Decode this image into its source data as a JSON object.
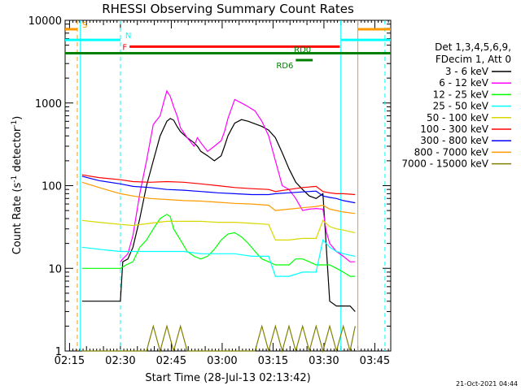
{
  "chart_data": {
    "type": "line",
    "title": "RHESSI Observing Summary Count Rates",
    "xlabel": "Start Time (28-Jul-13 02:13:42)",
    "ylabel": "Count Rate (s",
    "ylabel_sup1": "-1",
    "ylabel_mid": " detector",
    "ylabel_sup2": "-1",
    "ylabel_end": ")",
    "footer": "21-Oct-2021 04:44",
    "x_unit": "minutes since 02:13:42",
    "xlim": [
      0,
      96
    ],
    "ylim": [
      1,
      10000
    ],
    "yscale": "log",
    "x_tick_labels": [
      "02:15",
      "02:30",
      "02:45",
      "03:00",
      "03:15",
      "03:30",
      "03:45"
    ],
    "x_tick_values": [
      1.3,
      16.3,
      31.3,
      46.3,
      61.3,
      76.3,
      91.3
    ],
    "y_tick_labels": [
      "1",
      "10",
      "100",
      "1000",
      "10000"
    ],
    "y_tick_values": [
      1,
      10,
      100,
      1000,
      10000
    ],
    "legend_header": [
      "Det 1,3,4,5,6,9,",
      "FDecim 1, Att 0"
    ],
    "legend_position": "right",
    "series": [
      {
        "name": "3 - 6 keV",
        "color": "#000000",
        "x": [
          5,
          7,
          9,
          11,
          13,
          15,
          16.3,
          17,
          18.5,
          20,
          22,
          24,
          26,
          28,
          30,
          31,
          32,
          33,
          34,
          36,
          38,
          39,
          40,
          42,
          44,
          46,
          47,
          48,
          49,
          50,
          52,
          54,
          56,
          58,
          60,
          62,
          64,
          66,
          68,
          70,
          72,
          74,
          76,
          78,
          80,
          82,
          84,
          85.5
        ],
        "y": [
          4,
          4,
          4,
          4,
          4,
          4,
          4,
          12,
          13,
          18,
          40,
          100,
          200,
          400,
          600,
          650,
          620,
          520,
          450,
          380,
          330,
          300,
          260,
          230,
          200,
          230,
          300,
          400,
          480,
          570,
          630,
          600,
          560,
          520,
          470,
          380,
          250,
          160,
          110,
          90,
          75,
          70,
          80,
          4,
          3.5,
          3.5,
          3.5,
          3
        ]
      },
      {
        "name": "6 - 12 keV",
        "color": "#ff00ff",
        "x": [
          16.3,
          17,
          18.5,
          20,
          22,
          24,
          26,
          28,
          29,
          30,
          31,
          32,
          33,
          34,
          36,
          38,
          39,
          40,
          42,
          44,
          46,
          47,
          48,
          49,
          50,
          52,
          54,
          56,
          58,
          60,
          62,
          64,
          66,
          68,
          70,
          72,
          74,
          76,
          77,
          78,
          80,
          82,
          84,
          85.5
        ],
        "y": [
          12,
          13,
          15,
          25,
          80,
          200,
          550,
          700,
          1000,
          1400,
          1200,
          900,
          700,
          500,
          380,
          300,
          380,
          330,
          260,
          300,
          350,
          450,
          650,
          850,
          1100,
          1000,
          900,
          800,
          600,
          400,
          200,
          100,
          90,
          70,
          50,
          52,
          53,
          52,
          28,
          20,
          16,
          14,
          12,
          12
        ]
      },
      {
        "name": "12 - 25 keV",
        "color": "#00ff00",
        "x": [
          5,
          8,
          12,
          16.3,
          18,
          20,
          22,
          24,
          26,
          28,
          30,
          31,
          32,
          34,
          36,
          38,
          40,
          42,
          44,
          46,
          48,
          50,
          52,
          54,
          56,
          58,
          60,
          62,
          64,
          66,
          68,
          70,
          72,
          74,
          76,
          78,
          80,
          82,
          84,
          85.5
        ],
        "y": [
          10,
          10,
          10,
          10,
          11,
          12,
          18,
          22,
          30,
          40,
          45,
          42,
          30,
          22,
          16,
          14,
          13,
          14,
          17,
          22,
          26,
          27,
          24,
          20,
          16,
          13,
          12,
          11,
          11,
          11,
          13,
          13,
          12,
          11,
          11,
          11,
          10,
          9,
          8,
          8
        ]
      },
      {
        "name": "25 - 50 keV",
        "color": "#00ffff",
        "x": [
          5,
          10,
          16.3,
          20,
          25,
          30,
          35,
          40,
          45,
          50,
          55,
          60,
          62,
          66,
          70,
          74,
          76,
          78,
          80,
          82,
          85.5
        ],
        "y": [
          18,
          17,
          16,
          16,
          16,
          16,
          16,
          15,
          15,
          15,
          14,
          14,
          8,
          8,
          9,
          9,
          22,
          18,
          16,
          15,
          14
        ]
      },
      {
        "name": "50 - 100 keV",
        "color": "#d8d800",
        "x": [
          5,
          10,
          16.3,
          20,
          25,
          30,
          35,
          40,
          45,
          50,
          55,
          60,
          62,
          66,
          70,
          74,
          76,
          78,
          80,
          82,
          85.5
        ],
        "y": [
          38,
          36,
          34,
          33,
          35,
          37,
          37,
          37,
          36,
          36,
          35,
          34,
          22,
          22,
          23,
          23,
          38,
          32,
          30,
          29,
          27
        ]
      },
      {
        "name": "100 - 300 keV",
        "color": "#ff0000",
        "x": [
          5,
          10,
          16.3,
          20,
          25,
          30,
          35,
          40,
          45,
          50,
          55,
          60,
          62,
          66,
          70,
          74,
          76,
          78,
          80,
          82,
          85.5
        ],
        "y": [
          135,
          125,
          118,
          112,
          110,
          112,
          110,
          105,
          100,
          95,
          92,
          90,
          85,
          90,
          95,
          98,
          85,
          82,
          80,
          80,
          78
        ]
      },
      {
        "name": "300 - 800 keV",
        "color": "#0000ff",
        "x": [
          5,
          10,
          16.3,
          20,
          25,
          30,
          35,
          40,
          45,
          50,
          55,
          60,
          62,
          66,
          70,
          74,
          76,
          78,
          80,
          82,
          85.5
        ],
        "y": [
          130,
          115,
          105,
          98,
          95,
          90,
          88,
          85,
          82,
          80,
          78,
          78,
          80,
          82,
          84,
          86,
          75,
          72,
          70,
          66,
          62
        ]
      },
      {
        "name": "800 - 7000 keV",
        "color": "#ff9900",
        "x": [
          5,
          10,
          16.3,
          20,
          25,
          30,
          35,
          40,
          45,
          50,
          55,
          60,
          62,
          66,
          70,
          74,
          76,
          78,
          80,
          82,
          85.5
        ],
        "y": [
          110,
          95,
          80,
          75,
          70,
          68,
          66,
          65,
          63,
          61,
          60,
          58,
          50,
          52,
          54,
          56,
          58,
          52,
          50,
          48,
          46
        ]
      },
      {
        "name": "7000 - 15000 keV",
        "color": "#808000",
        "x": [
          5,
          10,
          16.3,
          20,
          24,
          26,
          28,
          30,
          32,
          34,
          36,
          40,
          44,
          48,
          52,
          56,
          58,
          60,
          62,
          64,
          66,
          68,
          70,
          72,
          74,
          76,
          78,
          80,
          82,
          84,
          85.5
        ],
        "y": [
          1,
          1,
          1,
          1,
          1,
          2,
          1,
          2,
          1,
          2,
          1,
          1,
          1,
          1,
          1,
          1,
          2,
          1,
          2,
          1,
          2,
          1,
          2,
          1,
          2,
          1,
          2,
          1,
          2,
          1,
          2
        ]
      }
    ],
    "vertical_lines": [
      {
        "x": 4.5,
        "color": "#00ffff",
        "style": "solid"
      },
      {
        "x": 3.6,
        "color": "#ff9900",
        "style": "dashed"
      },
      {
        "x": 16.3,
        "color": "#00ffff",
        "style": "dashed"
      },
      {
        "x": 81.3,
        "color": "#00ffff",
        "style": "solid"
      },
      {
        "x": 86.3,
        "color": "#ff9900",
        "style": "solid"
      },
      {
        "x": 94.3,
        "color": "#00ffff",
        "style": "dashed"
      }
    ],
    "bars": [
      {
        "label": "S",
        "color": "#ff9900",
        "x0": 0,
        "x1": 3.6,
        "y": 7800,
        "label_pos": "right"
      },
      {
        "label": "S",
        "color": "#ff9900",
        "x0": 86.3,
        "x1": 96,
        "y": 7800,
        "label_pos": "none"
      },
      {
        "label": "N",
        "color": "#00ffff",
        "x0": 0,
        "x1": 16.3,
        "y": 5800,
        "label_pos": "right"
      },
      {
        "label": "N",
        "color": "#00ffff",
        "x0": 81.3,
        "x1": 96,
        "y": 5800,
        "label_pos": "none"
      },
      {
        "label": "F",
        "color": "#ff0000",
        "x0": 19,
        "x1": 81,
        "y": 4800,
        "label_pos": "left"
      },
      {
        "label": "RD0",
        "color": "#008000",
        "x0": 0,
        "x1": 96,
        "y": 4000,
        "label_pos": "center"
      },
      {
        "label": "RD6",
        "color": "#008000",
        "x0": 68,
        "x1": 73,
        "y": 3300,
        "label_pos": "left"
      }
    ]
  }
}
